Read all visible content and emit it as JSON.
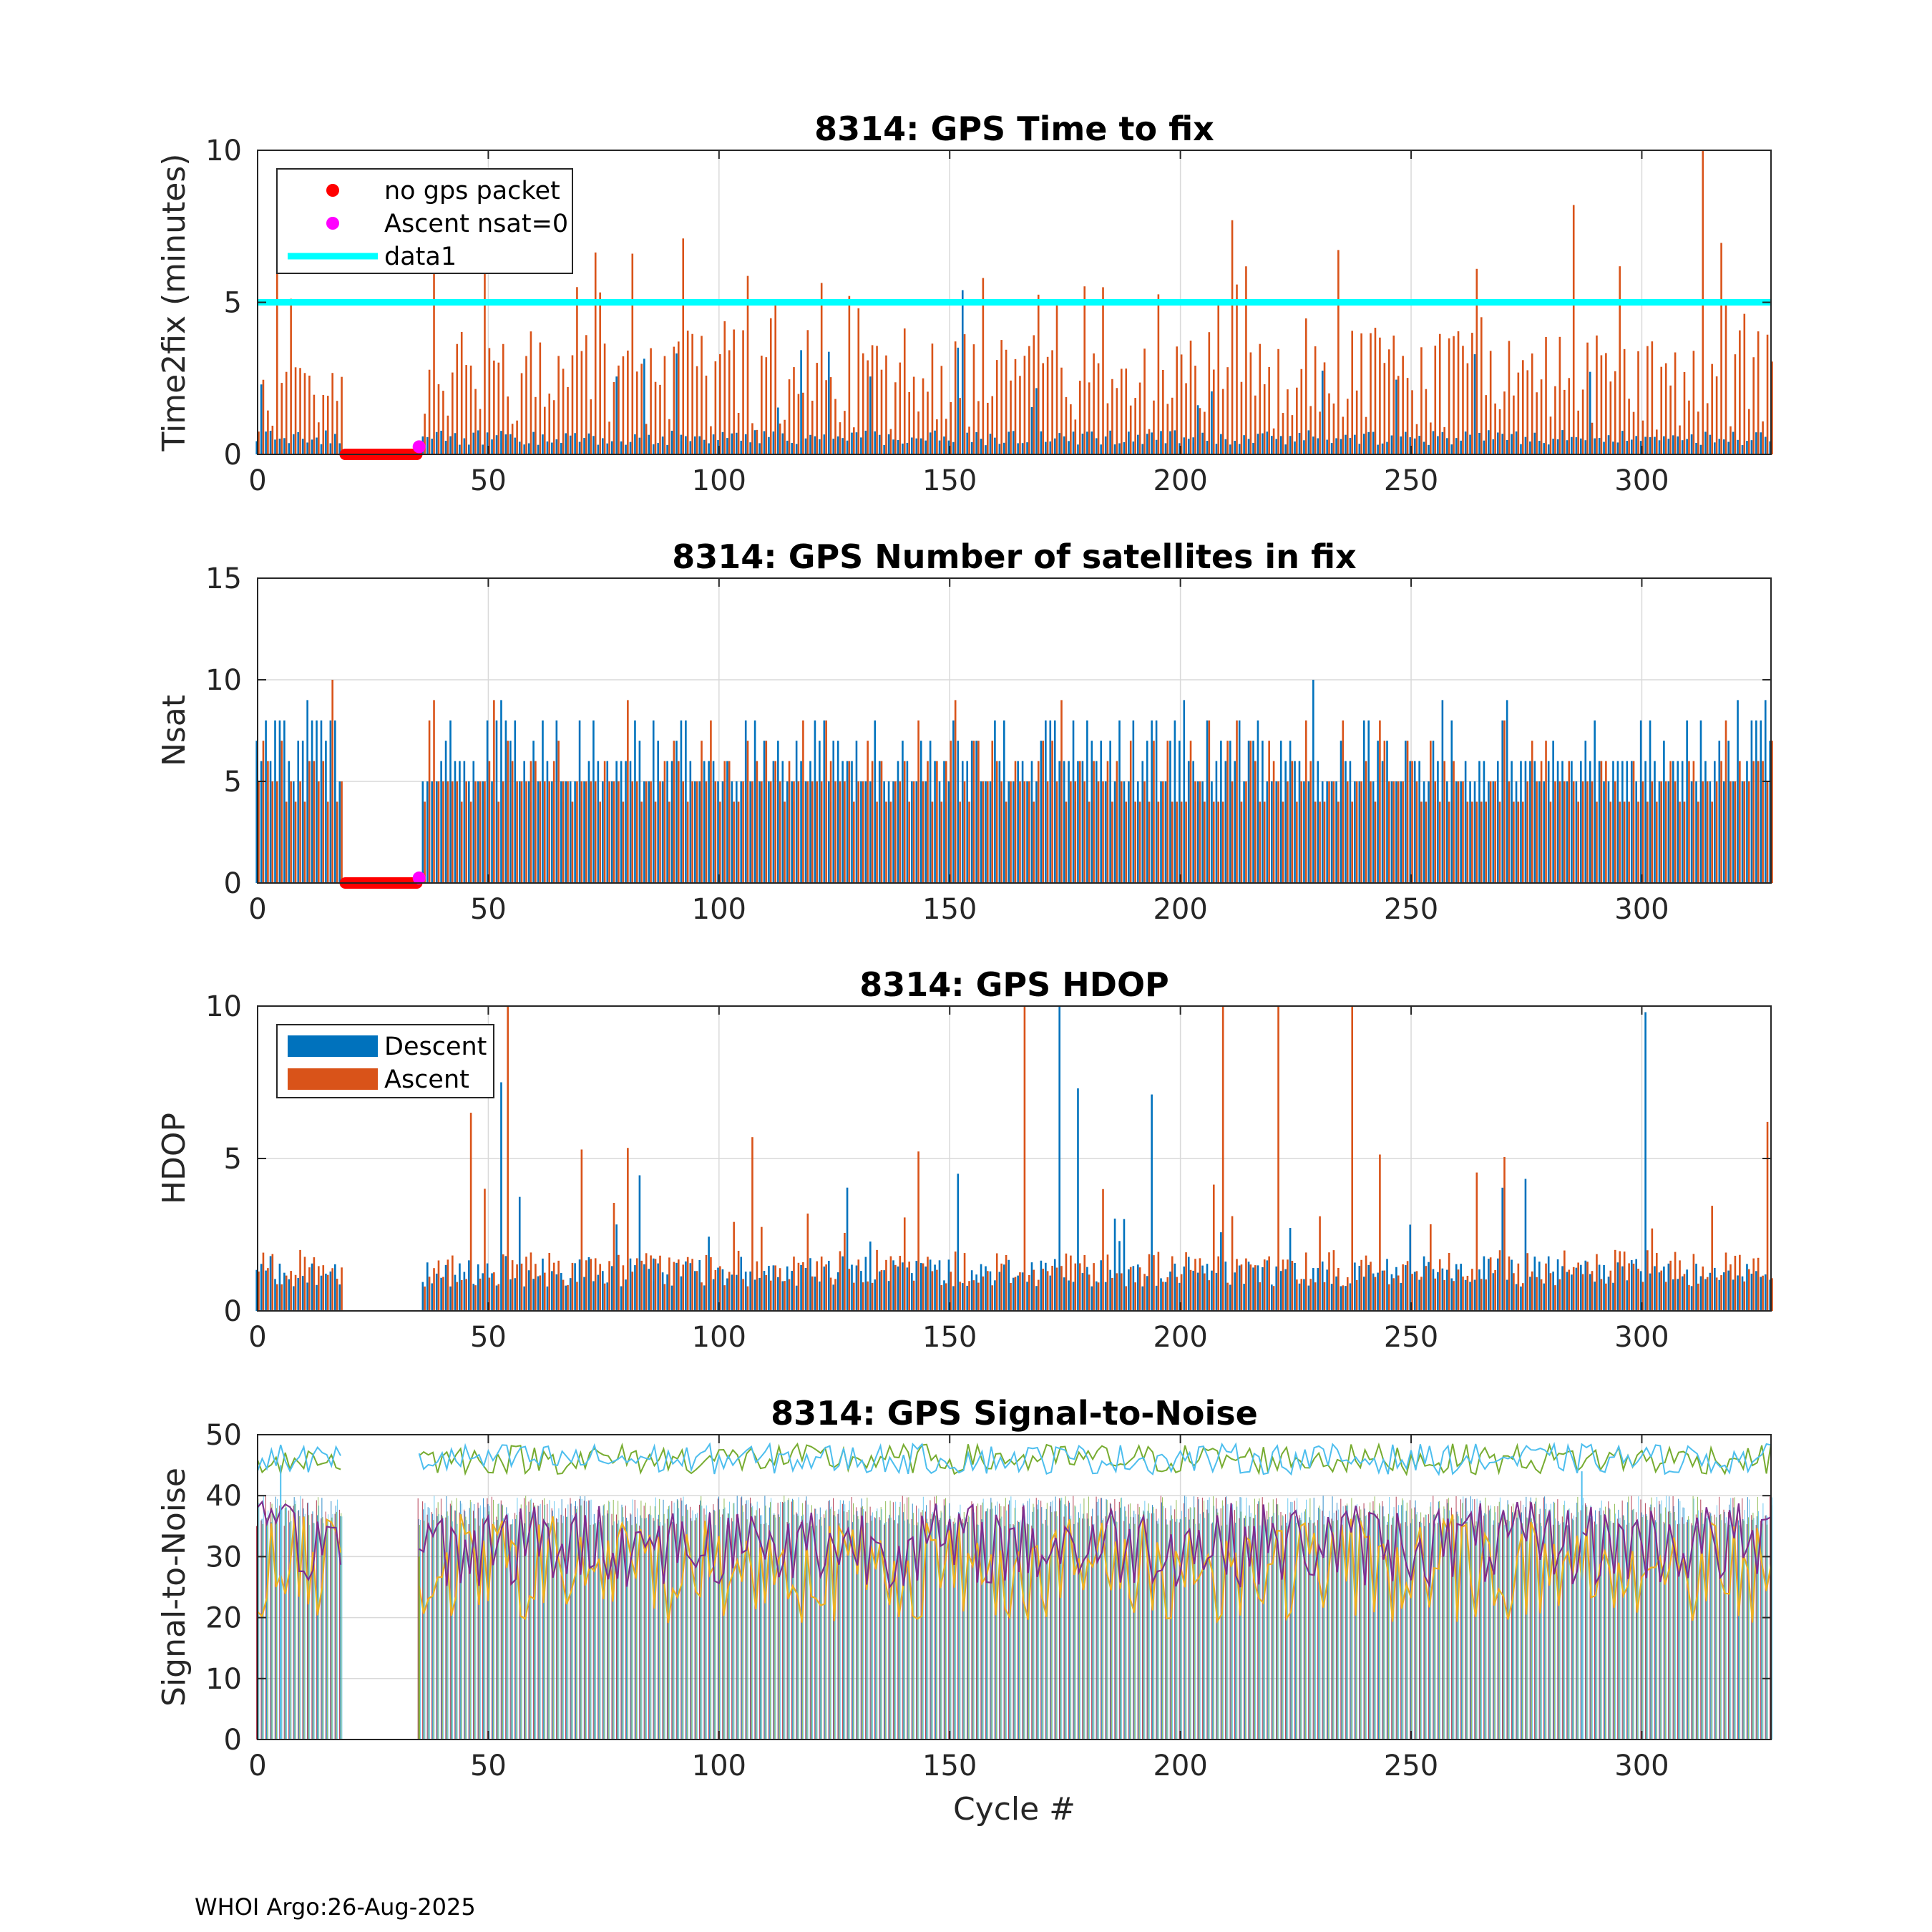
{
  "figure": {
    "footer": "WHOI Argo:26-Aug-2025",
    "xlabel": "Cycle #",
    "colors": {
      "descent": "#0072BD",
      "ascent": "#D95319",
      "no_gps": "#FF0000",
      "ascent_nsat0": "#FF00FF",
      "data1": "#00FFFF",
      "grid": "#d9d9d9"
    }
  },
  "chart_data": [
    {
      "type": "bar",
      "id": "time2fix",
      "title": "8314: GPS Time to fix",
      "xlabel": "",
      "ylabel": "Time2fix (minutes)",
      "xlim": [
        0,
        328
      ],
      "ylim": [
        0,
        10
      ],
      "xticks": [
        "0",
        "50",
        "100",
        "150",
        "200",
        "250",
        "300"
      ],
      "yticks": [
        "0",
        "5",
        "10"
      ],
      "grid": true,
      "legend_position": "top-left",
      "legend": [
        {
          "label": "no gps packet",
          "kind": "marker",
          "color": "#FF0000"
        },
        {
          "label": "Ascent nsat=0",
          "kind": "marker",
          "color": "#FF00FF"
        },
        {
          "label": "data1",
          "kind": "line",
          "color": "#00FFFF"
        }
      ],
      "reference_line": {
        "name": "data1",
        "y": 5
      },
      "no_gps_cycles": [
        19,
        35
      ],
      "nsat0_cycle": 35,
      "series": [
        {
          "name": "Descent",
          "values_estimated": "0.3-0.8 typical, peaks ~5.4 near cycle 153"
        },
        {
          "name": "Ascent",
          "values_estimated": "1-5 typical, peaks ~10 near cycle 313, ~8.2 near cycle 285"
        }
      ]
    },
    {
      "type": "bar",
      "id": "nsat",
      "title": "8314: GPS Number of satellites in fix",
      "xlabel": "",
      "ylabel": "Nsat",
      "xlim": [
        0,
        328
      ],
      "ylim": [
        0,
        15
      ],
      "xticks": [
        "0",
        "50",
        "100",
        "150",
        "200",
        "250",
        "300"
      ],
      "yticks": [
        "0",
        "5",
        "10",
        "15"
      ],
      "grid": true,
      "no_gps_cycles": [
        19,
        35
      ],
      "nsat0_cycle": 35,
      "series": [
        {
          "name": "Descent",
          "values_estimated": "5-9 typical, max 12 near cycle 4"
        },
        {
          "name": "Ascent",
          "values_estimated": "4-9 typical, max 10 near cycle 16"
        }
      ]
    },
    {
      "type": "bar",
      "id": "hdop",
      "title": "8314: GPS HDOP",
      "xlabel": "",
      "ylabel": "HDOP",
      "xlim": [
        0,
        328
      ],
      "ylim": [
        0,
        10
      ],
      "xticks": [
        "0",
        "50",
        "100",
        "150",
        "200",
        "250",
        "300"
      ],
      "yticks": [
        "0",
        "5",
        "10"
      ],
      "grid": true,
      "legend_position": "top-left",
      "legend": [
        {
          "label": "Descent",
          "kind": "patch",
          "color": "#0072BD"
        },
        {
          "label": "Ascent",
          "kind": "patch",
          "color": "#D95319"
        }
      ],
      "series": [
        {
          "name": "Descent",
          "values_estimated": "0.8-2 typical, peaks ~10 near cycle 174, ~7.3 near 178"
        },
        {
          "name": "Ascent",
          "values_estimated": "0.8-3 typical, peaks 10 near cycles 54, 166, 209, 221, 237"
        }
      ]
    },
    {
      "type": "line",
      "id": "snr",
      "title": "8314: GPS Signal-to-Noise",
      "xlabel": "Cycle #",
      "ylabel": "Signal-to-Noise",
      "xlim": [
        0,
        328
      ],
      "ylim": [
        0,
        50
      ],
      "xticks": [
        "0",
        "50",
        "100",
        "150",
        "200",
        "250",
        "300"
      ],
      "yticks": [
        "0",
        "10",
        "20",
        "30",
        "40",
        "50"
      ],
      "grid": true,
      "series": [
        {
          "name": "SNR max (blue)",
          "color": "#4DBEEE",
          "values_estimated": "~44-50"
        },
        {
          "name": "SNR 2nd (green)",
          "color": "#77AC30",
          "values_estimated": "~42-50"
        },
        {
          "name": "SNR mean (purple)",
          "color": "#7E2F8E",
          "values_estimated": "~20-44"
        },
        {
          "name": "SNR min (yellow)",
          "color": "#EDB120",
          "values_estimated": "~12-40"
        },
        {
          "name": "SNR bars",
          "color": "#A2142F",
          "values_estimated": "~36-40 per cycle"
        }
      ]
    }
  ]
}
